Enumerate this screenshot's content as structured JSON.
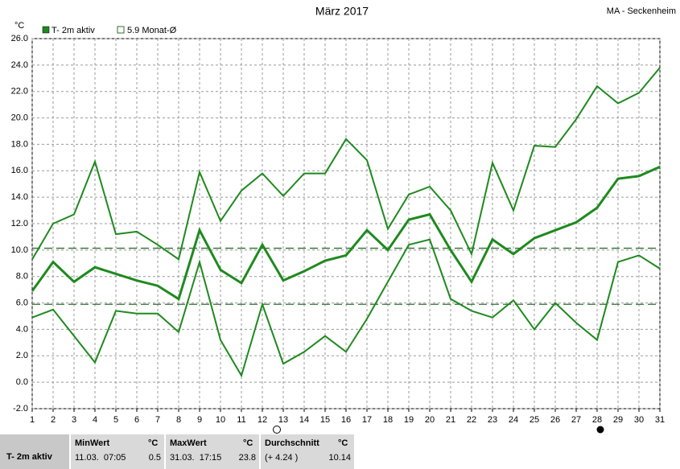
{
  "chart_data": {
    "type": "band-line",
    "title": "März 2017",
    "station": "MA - Seckenheim",
    "unit": "°C",
    "x": [
      1,
      2,
      3,
      4,
      5,
      6,
      7,
      8,
      9,
      10,
      11,
      12,
      13,
      14,
      15,
      16,
      17,
      18,
      19,
      20,
      21,
      22,
      23,
      24,
      25,
      26,
      27,
      28,
      29,
      30,
      31
    ],
    "series": [
      {
        "name": "T- 2m aktiv",
        "color": "#1e8a1e",
        "values": [
          6.9,
          9.1,
          7.6,
          8.7,
          8.2,
          7.7,
          7.3,
          6.3,
          11.5,
          8.5,
          7.5,
          10.4,
          7.7,
          8.4,
          9.2,
          9.6,
          11.5,
          10.0,
          12.3,
          12.7,
          10.0,
          7.6,
          10.8,
          9.7,
          10.9,
          11.5,
          12.1,
          13.2,
          15.4,
          15.6,
          16.3
        ],
        "max": [
          9.3,
          12.0,
          12.7,
          16.7,
          11.2,
          11.4,
          10.4,
          9.3,
          15.9,
          12.2,
          14.5,
          15.8,
          14.1,
          15.8,
          15.8,
          18.4,
          16.8,
          11.6,
          14.2,
          14.8,
          13.0,
          9.7,
          16.6,
          13.0,
          17.9,
          17.8,
          19.9,
          22.4,
          21.1,
          21.9,
          23.8
        ],
        "min": [
          4.9,
          5.5,
          3.5,
          1.5,
          5.4,
          5.2,
          5.2,
          3.8,
          9.1,
          3.2,
          0.5,
          5.9,
          1.4,
          2.3,
          3.5,
          2.3,
          4.8,
          7.6,
          10.4,
          10.8,
          6.3,
          5.4,
          4.9,
          6.2,
          4.0,
          6.0,
          4.5,
          3.2,
          9.1,
          9.6,
          8.6
        ]
      }
    ],
    "reference_lines": [
      {
        "label": "5.9 Monat-Ø",
        "value": 5.9,
        "color": "#2e6e2e"
      },
      {
        "value": 10.14,
        "color": "#2e6e2e"
      }
    ],
    "xlim": [
      1,
      31
    ],
    "xticks": [
      1,
      2,
      3,
      4,
      5,
      6,
      7,
      8,
      9,
      10,
      11,
      12,
      13,
      14,
      15,
      16,
      17,
      18,
      19,
      20,
      21,
      22,
      23,
      24,
      25,
      26,
      27,
      28,
      29,
      30,
      31
    ],
    "ylim": [
      -2,
      26
    ],
    "yticks": [
      {
        "value": 26,
        "label": "26.0"
      },
      {
        "value": 24,
        "label": "24.0"
      },
      {
        "value": 22,
        "label": "22.0"
      },
      {
        "value": 20,
        "label": "20.0"
      },
      {
        "value": 18,
        "label": "18.0"
      },
      {
        "value": 16,
        "label": "16.0"
      },
      {
        "value": 14,
        "label": "14.0"
      },
      {
        "value": 12,
        "label": "12.0"
      },
      {
        "value": 10,
        "label": "10.0"
      },
      {
        "value": 8,
        "label": "8.0"
      },
      {
        "value": 6,
        "label": "6.0"
      },
      {
        "value": 4,
        "label": "4.0"
      },
      {
        "value": 2,
        "label": "2.0"
      },
      {
        "value": 0,
        "label": "0.0"
      },
      {
        "value": -2,
        "label": "-2.0"
      }
    ],
    "grid": true
  },
  "stats": {
    "row_label": "T- 2m aktiv",
    "columns": [
      {
        "header": "MinWert",
        "unit": "°C",
        "when": "11.03.  07:05",
        "value": "0.5"
      },
      {
        "header": "MaxWert",
        "unit": "°C",
        "when": "31.03.  17:15",
        "value": "23.8"
      },
      {
        "header": "Durchschnitt",
        "unit": "°C",
        "when": "(+ 4.24 )",
        "value": "10.14"
      }
    ]
  }
}
